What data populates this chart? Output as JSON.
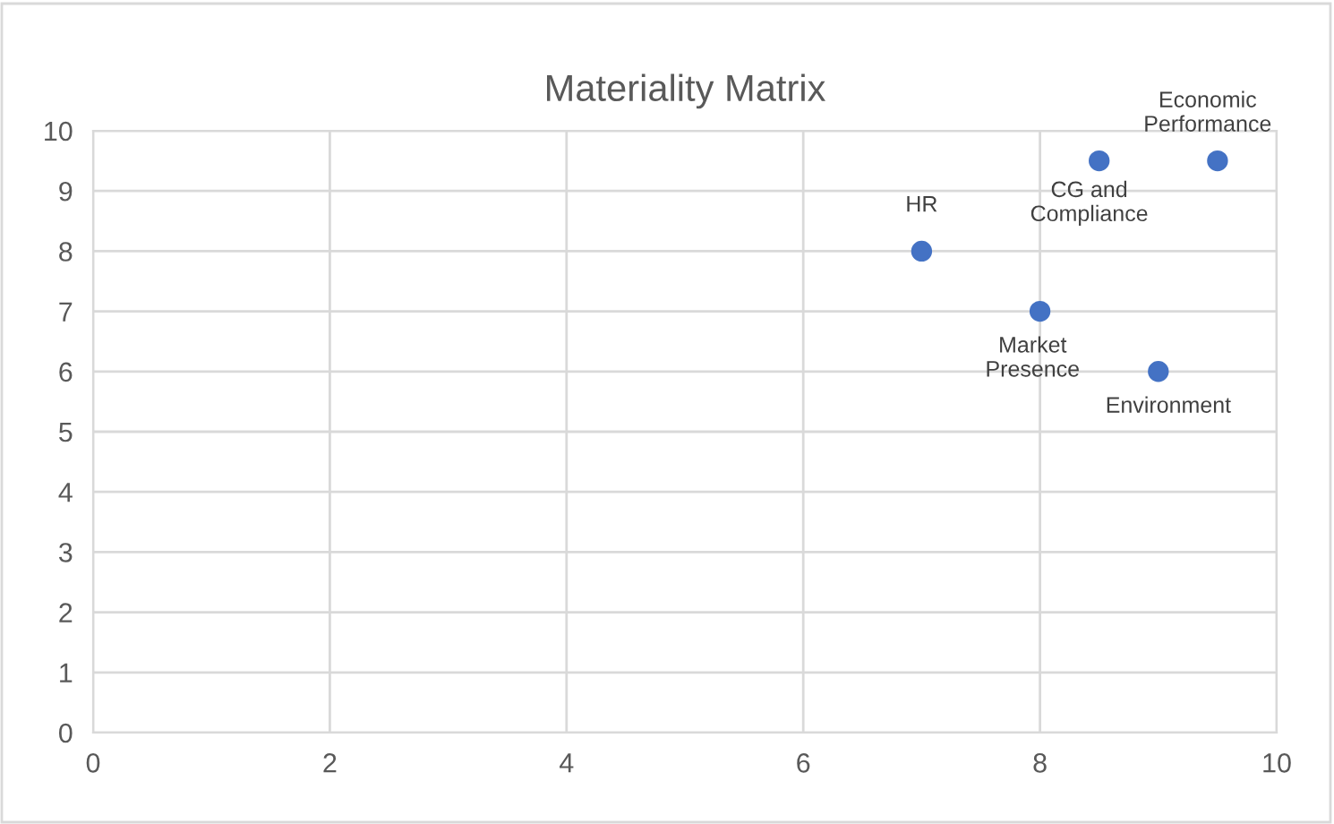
{
  "chart_data": {
    "type": "scatter",
    "title": "Materiality Matrix",
    "x": [
      7,
      8,
      8.5,
      9.5,
      9
    ],
    "values": [
      8,
      7,
      9.5,
      9.5,
      6
    ],
    "color": "#4472c4",
    "marker": "circle",
    "xlim": [
      0,
      10
    ],
    "xticks": [
      0,
      2,
      4,
      6,
      8,
      10
    ],
    "ylim": [
      0,
      10
    ],
    "yticks": [
      0,
      1,
      2,
      3,
      4,
      5,
      6,
      7,
      8,
      9,
      10
    ],
    "grid": true,
    "legend": false,
    "annotations": [
      {
        "text": "HR",
        "x": 7,
        "y": 8
      },
      {
        "text": "Market\nPresence",
        "x": 8,
        "y": 7
      },
      {
        "text": "CG and\nCompliance",
        "x": 8.5,
        "y": 9.5
      },
      {
        "text": "Economic\nPerformance",
        "x": 9.5,
        "y": 9.5
      },
      {
        "text": "Environment",
        "x": 9,
        "y": 6
      }
    ]
  }
}
